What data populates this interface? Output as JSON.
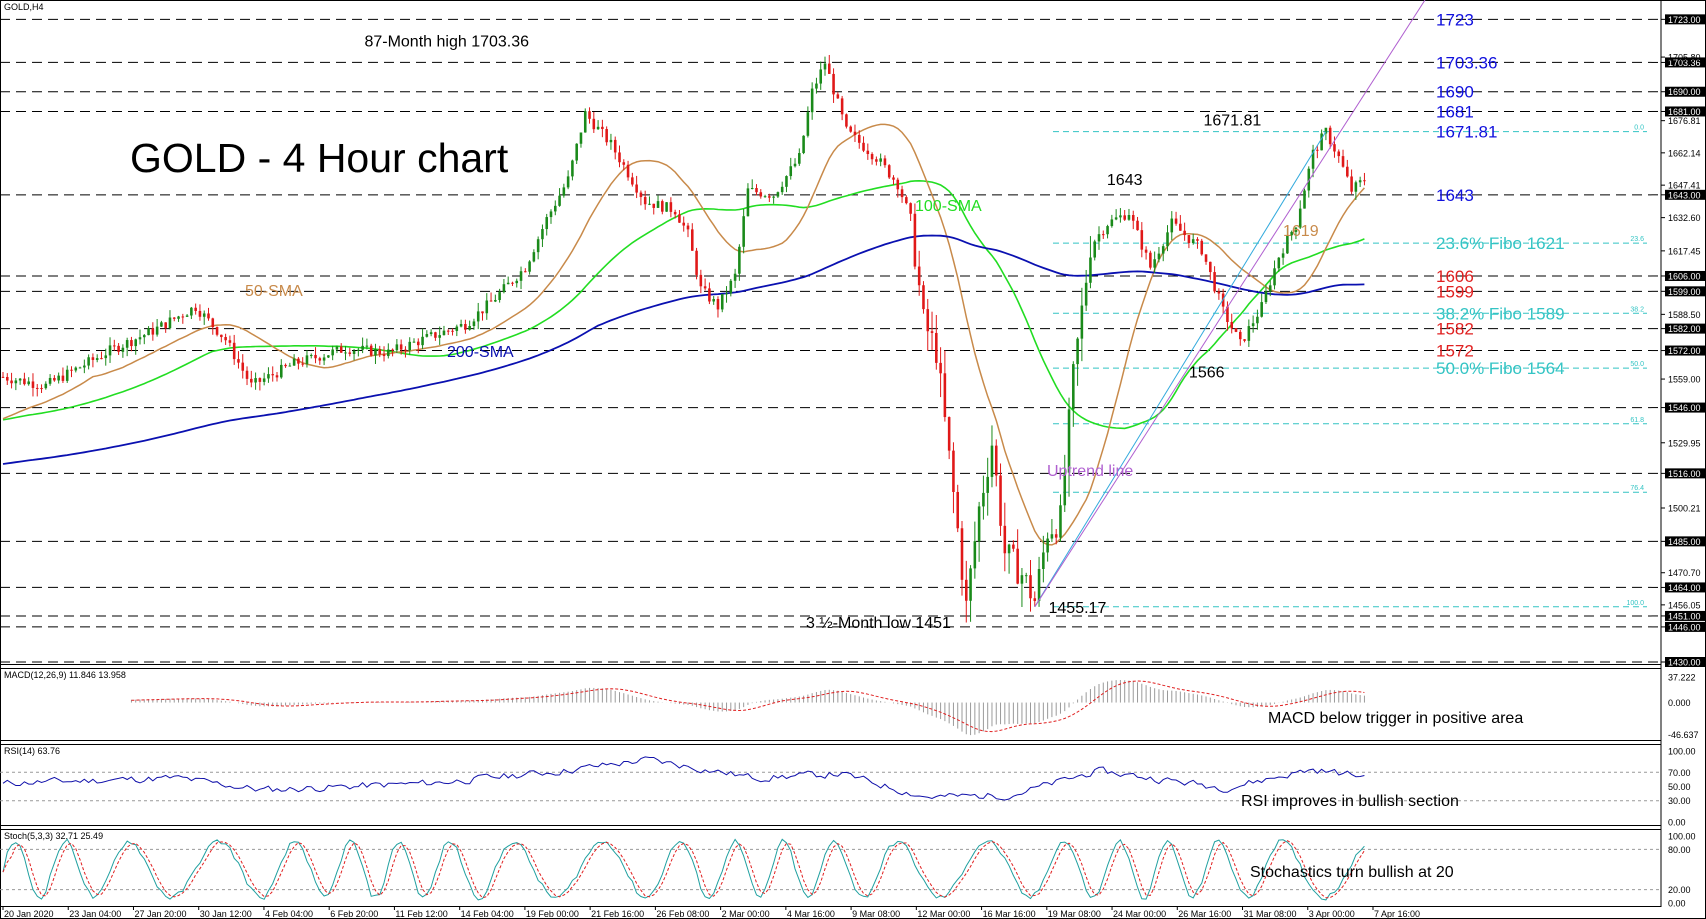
{
  "chart_data": {
    "type": "candlestick",
    "symbol_label": "GOLD,H4",
    "title": "GOLD - 4 Hour chart",
    "ylim": [
      1430,
      1730
    ],
    "price_axis_ticks": [
      {
        "value": 1723,
        "text": "1723.00",
        "boxed": true
      },
      {
        "value": 1703.36,
        "text": "1703.36",
        "boxed": true
      },
      {
        "value": 1705.8,
        "text": "1705.80",
        "boxed": false
      },
      {
        "value": 1690,
        "text": "1690.00",
        "boxed": true
      },
      {
        "value": 1681,
        "text": "1681.00",
        "boxed": true
      },
      {
        "value": 1676.81,
        "text": "1676.81",
        "boxed": false
      },
      {
        "value": 1662.14,
        "text": "1662.14",
        "boxed": false
      },
      {
        "value": 1647.41,
        "text": "1647.41",
        "boxed": false
      },
      {
        "value": 1643,
        "text": "1643.00",
        "boxed": true
      },
      {
        "value": 1632.6,
        "text": "1632.60",
        "boxed": false
      },
      {
        "value": 1617.45,
        "text": "1617.45",
        "boxed": false
      },
      {
        "value": 1606,
        "text": "1606.00",
        "boxed": true
      },
      {
        "value": 1599,
        "text": "1599.00",
        "boxed": true
      },
      {
        "value": 1588.5,
        "text": "1588.50",
        "boxed": false
      },
      {
        "value": 1582,
        "text": "1582.00",
        "boxed": true
      },
      {
        "value": 1572,
        "text": "1572.00",
        "boxed": true
      },
      {
        "value": 1559.0,
        "text": "1559.00",
        "boxed": false
      },
      {
        "value": 1546,
        "text": "1546.00",
        "boxed": true
      },
      {
        "value": 1529.95,
        "text": "1529.95",
        "boxed": false
      },
      {
        "value": 1516,
        "text": "1516.00",
        "boxed": true
      },
      {
        "value": 1500.21,
        "text": "1500.21",
        "boxed": false
      },
      {
        "value": 1485,
        "text": "1485.00",
        "boxed": true
      },
      {
        "value": 1470.7,
        "text": "1470.70",
        "boxed": false
      },
      {
        "value": 1464,
        "text": "1464.00",
        "boxed": true
      },
      {
        "value": 1456.05,
        "text": "1456.05",
        "boxed": false
      },
      {
        "value": 1451,
        "text": "1451.00",
        "boxed": true
      },
      {
        "value": 1446,
        "text": "1446.00",
        "boxed": true
      },
      {
        "value": 1430,
        "text": "1430.00",
        "boxed": true
      }
    ],
    "horizontal_levels": [
      1723,
      1703.36,
      1690,
      1681,
      1643,
      1606,
      1599,
      1582,
      1572,
      1546,
      1516,
      1485,
      1464,
      1451,
      1446,
      1430
    ],
    "fibo_levels": [
      {
        "ratio_label": "0.0",
        "value": 1671.81
      },
      {
        "ratio_label": "23.6",
        "value": 1621
      },
      {
        "ratio_label": "38.2",
        "value": 1589
      },
      {
        "ratio_label": "50.0",
        "value": 1564
      },
      {
        "ratio_label": "61.8",
        "value": 1538.6
      },
      {
        "ratio_label": "76.4",
        "value": 1507.4
      },
      {
        "ratio_label": "100.0",
        "value": 1455.17
      }
    ],
    "right_labels": [
      {
        "text": "1723",
        "value": 1723,
        "color": "#1010dd"
      },
      {
        "text": "1703.36",
        "value": 1703.36,
        "color": "#1010dd"
      },
      {
        "text": "1690",
        "value": 1690,
        "color": "#1010dd"
      },
      {
        "text": "1681",
        "value": 1681,
        "color": "#1010dd"
      },
      {
        "text": "1671.81",
        "value": 1671.81,
        "color": "#1010dd"
      },
      {
        "text": "1643",
        "value": 1643,
        "color": "#1010dd"
      },
      {
        "text": "23.6% Fibo 1621",
        "value": 1621,
        "color": "#33c4c4"
      },
      {
        "text": "1606",
        "value": 1606,
        "color": "#e02020"
      },
      {
        "text": "1599",
        "value": 1599,
        "color": "#e02020"
      },
      {
        "text": "38.2% Fibo 1589",
        "value": 1589,
        "color": "#33c4c4"
      },
      {
        "text": "1582",
        "value": 1582,
        "color": "#e02020"
      },
      {
        "text": "1572",
        "value": 1572,
        "color": "#e02020"
      },
      {
        "text": "50.0% Fibo 1564",
        "value": 1564,
        "color": "#33c4c4"
      }
    ],
    "annotations": [
      {
        "text": "87-Month high 1703.36",
        "price": 1703.36,
        "bar": 120
      },
      {
        "text": "1643",
        "price": 1643,
        "bar": 262
      },
      {
        "text": "1671.81",
        "price": 1671.81,
        "bar": 300
      },
      {
        "text": "1566",
        "price": 1566,
        "bar": 287
      },
      {
        "text": "3 ½-Month low 1451",
        "price": 1451,
        "bar": 215
      },
      {
        "text": "1455.17",
        "price": 1455.17,
        "bar": 240
      }
    ],
    "indicator_labels": {
      "sma50": "50-SMA",
      "sma100": "100-SMA",
      "sma200": "200-SMA",
      "sma50_value": "1619",
      "uptrend": "Uptrend line"
    },
    "x_ticks": [
      "20 Jan 2020",
      "23 Jan 04:00",
      "27 Jan 20:00",
      "30 Jan 12:00",
      "4 Feb 04:00",
      "6 Feb 20:00",
      "11 Feb 12:00",
      "14 Feb 04:00",
      "19 Feb 00:00",
      "21 Feb 16:00",
      "26 Feb 08:00",
      "2 Mar 00:00",
      "4 Mar 16:00",
      "9 Mar 08:00",
      "12 Mar 00:00",
      "16 Mar 16:00",
      "19 Mar 08:00",
      "24 Mar 00:00",
      "26 Mar 16:00",
      "31 Mar 08:00",
      "3 Apr 00:00",
      "7 Apr 16:00"
    ],
    "price_anchors": [
      [
        0,
        1560
      ],
      [
        10,
        1556
      ],
      [
        25,
        1572
      ],
      [
        35,
        1581
      ],
      [
        45,
        1592
      ],
      [
        52,
        1577
      ],
      [
        58,
        1556
      ],
      [
        68,
        1566
      ],
      [
        80,
        1573
      ],
      [
        90,
        1571
      ],
      [
        98,
        1577
      ],
      [
        108,
        1584
      ],
      [
        114,
        1594
      ],
      [
        122,
        1610
      ],
      [
        127,
        1632
      ],
      [
        132,
        1650
      ],
      [
        136,
        1680
      ],
      [
        142,
        1666
      ],
      [
        150,
        1640
      ],
      [
        157,
        1636
      ],
      [
        160,
        1625
      ],
      [
        163,
        1600
      ],
      [
        167,
        1592
      ],
      [
        171,
        1606
      ],
      [
        174,
        1645
      ],
      [
        180,
        1643
      ],
      [
        186,
        1660
      ],
      [
        189,
        1690
      ],
      [
        192,
        1703.36
      ],
      [
        197,
        1672
      ],
      [
        204,
        1660
      ],
      [
        209,
        1648
      ],
      [
        212,
        1632
      ],
      [
        215,
        1585
      ],
      [
        218,
        1572
      ],
      [
        223,
        1490
      ],
      [
        225,
        1455
      ],
      [
        228,
        1500
      ],
      [
        231,
        1530
      ],
      [
        234,
        1480
      ],
      [
        238,
        1470
      ],
      [
        241,
        1458
      ],
      [
        244,
        1490
      ],
      [
        247,
        1495
      ],
      [
        250,
        1560
      ],
      [
        254,
        1620
      ],
      [
        258,
        1630
      ],
      [
        263,
        1635
      ],
      [
        268,
        1610
      ],
      [
        273,
        1630
      ],
      [
        280,
        1618
      ],
      [
        285,
        1590
      ],
      [
        289,
        1575
      ],
      [
        294,
        1592
      ],
      [
        298,
        1615
      ],
      [
        302,
        1630
      ],
      [
        306,
        1662
      ],
      [
        309,
        1671.81
      ],
      [
        312,
        1660
      ],
      [
        315,
        1645
      ],
      [
        318,
        1650
      ]
    ],
    "macd": {
      "label": "MACD(12,26,9) 11.846 13.958",
      "ticks": [
        "37.222",
        "0.000",
        "-46.637"
      ],
      "ylim": [
        -50,
        40
      ],
      "annotation": "MACD below trigger in positive area"
    },
    "rsi": {
      "label": "RSI(14) 63.76",
      "ticks": [
        "100.00",
        "70.00",
        "50.00",
        "30.00",
        "0.00"
      ],
      "ylim": [
        0,
        100
      ],
      "annotation": "RSI improves in bullish section"
    },
    "stoch": {
      "label": "Stoch(5,3,3) 32.71 25.49",
      "ticks": [
        "100.00",
        "80.00",
        "20.00",
        "0.00"
      ],
      "ylim": [
        0,
        100
      ],
      "annotation": "Stochastics turn bullish at 20"
    },
    "colors": {
      "up": "#1a8a1a",
      "down": "#e01818",
      "sma50": "#c88a4a",
      "sma100": "#22dd22",
      "sma200": "#0a10b0",
      "fibo": "#33c4c4",
      "uptrend": "#b060d0",
      "channel": "#33aadd",
      "rsi": "#1010aa",
      "stoch_main": "#20a0a0",
      "stoch_signal": "#e02020",
      "macd_hist": "#9a9a9a",
      "macd_signal": "#e02020"
    }
  }
}
